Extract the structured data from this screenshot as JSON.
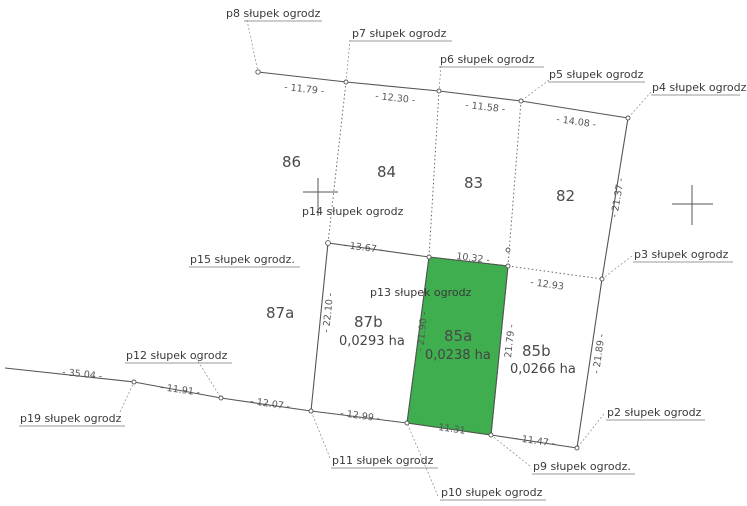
{
  "colors": {
    "highlight": "#3fae4f",
    "line": "#555555",
    "text": "#3a3a3a"
  },
  "points": {
    "p2": "p2 słupek ogrodz",
    "p3": "p3 słupek ogrodz",
    "p4": "p4 słupek ogrodz",
    "p5": "p5 słupek ogrodz",
    "p6": "p6 słupek ogrodz",
    "p7": "p7 słupek ogrodz",
    "p8": "p8 słupek ogrodz",
    "p9": "p9 słupek ogrodz.",
    "p10": "p10 słupek ogrodz",
    "p11": "p11 słupek ogrodz",
    "p12": "p12 słupek ogrodz",
    "p13": "p13 słupek ogrodz",
    "p14": "p14 słupek ogrodz",
    "p15": "p15 słupek ogrodz.",
    "p19": "p19 słupek ogrodz"
  },
  "parcels": {
    "p86": "86",
    "p84": "84",
    "p83": "83",
    "p82": "82",
    "p87a": "87a",
    "p87b": "87b",
    "p85a": "85a",
    "p85b": "85b",
    "area87b": "0,0293 ha",
    "area85a": "0,0238 ha",
    "area85b": "0,0266 ha"
  },
  "dimensions": {
    "d1": "- 11.79 -",
    "d2": "- 12.30 -",
    "d3": "- 11.58 -",
    "d4": "- 14.08 -",
    "d5": "- 13.67 -",
    "d6": "10.32 -",
    "d7": "- 12.93",
    "d8": "- 21.37 -",
    "d9": "- 22.10 -",
    "d10": "- 21.90 -",
    "d11": "21.79 -",
    "d12": "- 21.89 -",
    "d13": "- 35.04 -",
    "d14": "- 11.91 -",
    "d15": "- 12.07 -",
    "d16": "- 12.99 -",
    "d17": "11.31",
    "d18": "- 11.47 -"
  }
}
